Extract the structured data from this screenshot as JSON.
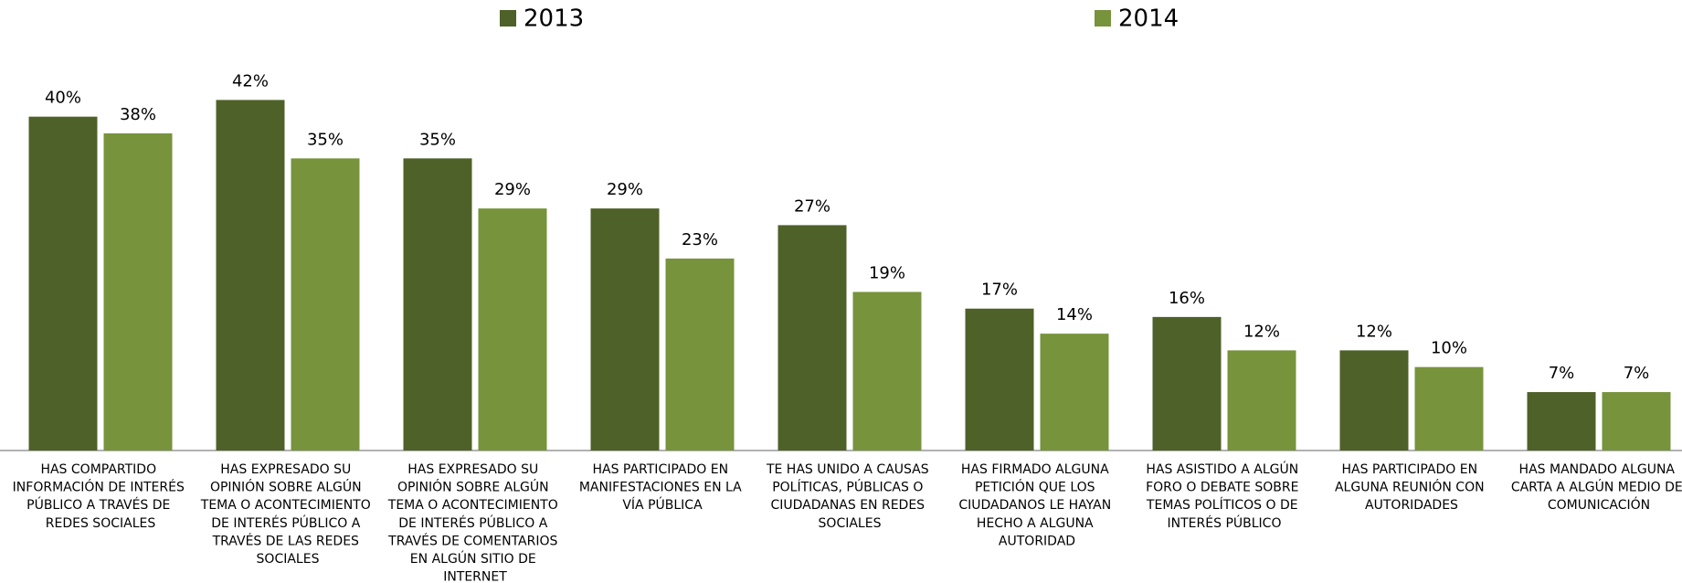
{
  "chart_data": {
    "type": "bar",
    "categories": [
      "HAS COMPARTIDO INFORMACIÓN DE INTERÉS PÚBLICO A TRAVÉS DE REDES SOCIALES",
      "HAS EXPRESADO SU OPINIÓN SOBRE ALGÚN TEMA O ACONTECIMIENTO DE INTERÉS PÚBLICO A TRAVÉS DE LAS REDES SOCIALES",
      "HAS EXPRESADO SU OPINIÓN SOBRE ALGÚN TEMA O ACONTECIMIENTO DE INTERÉS PÚBLICO A TRAVÉS DE COMENTARIOS EN ALGÚN SITIO DE INTERNET",
      "HAS PARTICIPADO EN MANIFESTACIONES EN LA VÍA PÚBLICA",
      "TE HAS UNIDO A CAUSAS POLÍTICAS, PÚBLICAS O CIUDADANAS EN REDES SOCIALES",
      "HAS FIRMADO ALGUNA PETICIÓN QUE LOS CIUDADANOS LE HAYAN HECHO A ALGUNA AUTORIDAD",
      "HAS ASISTIDO A ALGÚN FORO O DEBATE SOBRE TEMAS POLÍTICOS O DE INTERÉS PÚBLICO",
      "HAS PARTICIPADO EN ALGUNA REUNIÓN CON AUTORIDADES",
      "HAS MANDADO ALGUNA CARTA A ALGÚN MEDIO DE COMUNICACIÓN"
    ],
    "series": [
      {
        "name": "2013",
        "color": "#4e6128",
        "values": [
          40,
          42,
          35,
          29,
          27,
          17,
          16,
          12,
          7
        ],
        "value_labels": [
          "40%",
          "42%",
          "35%",
          "29%",
          "27%",
          "17%",
          "16%",
          "12%",
          "7%"
        ]
      },
      {
        "name": "2014",
        "color": "#77933c",
        "values": [
          38,
          35,
          29,
          23,
          19,
          14,
          12,
          10,
          7
        ],
        "value_labels": [
          "38%",
          "35%",
          "29%",
          "23%",
          "19%",
          "14%",
          "12%",
          "10%",
          "7%"
        ]
      }
    ],
    "ylim": [
      0,
      45
    ],
    "legend": "top"
  }
}
